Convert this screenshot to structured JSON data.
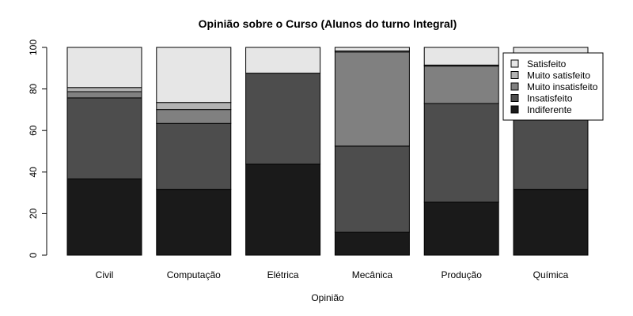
{
  "chart_data": {
    "type": "bar",
    "stacked": true,
    "title": "Opinião sobre o Curso (Alunos do turno Integral)",
    "xlabel": "Opinião",
    "ylabel": "",
    "ylim": [
      0,
      100
    ],
    "yticks": [
      0,
      20,
      40,
      60,
      80,
      100
    ],
    "categories": [
      "Civil",
      "Computação",
      "Elétrica",
      "Mecânica",
      "Produção",
      "Química"
    ],
    "series": [
      {
        "name": "Indiferente",
        "color": "#1a1a1a",
        "values": [
          36.7,
          31.7,
          43.8,
          11.0,
          25.5,
          31.7
        ]
      },
      {
        "name": "Insatisfeito",
        "color": "#4d4d4d",
        "values": [
          39.0,
          31.7,
          43.8,
          41.5,
          47.5,
          55.7
        ]
      },
      {
        "name": "Muito insatisfeito",
        "color": "#808080",
        "values": [
          3.0,
          6.7,
          0.0,
          45.3,
          18.0,
          0.0
        ]
      },
      {
        "name": "Muito satisfeito",
        "color": "#b3b3b3",
        "values": [
          2.0,
          3.4,
          0.0,
          0.5,
          0.5,
          0.0
        ]
      },
      {
        "name": "Satisfeito",
        "color": "#e6e6e6",
        "values": [
          19.3,
          26.5,
          12.4,
          1.7,
          8.5,
          12.6
        ]
      }
    ],
    "legend_order": [
      "Satisfeito",
      "Muito satisfeito",
      "Muito insatisfeito",
      "Insatisfeito",
      "Indiferente"
    ],
    "legend_position": "top-right",
    "grid": false
  }
}
